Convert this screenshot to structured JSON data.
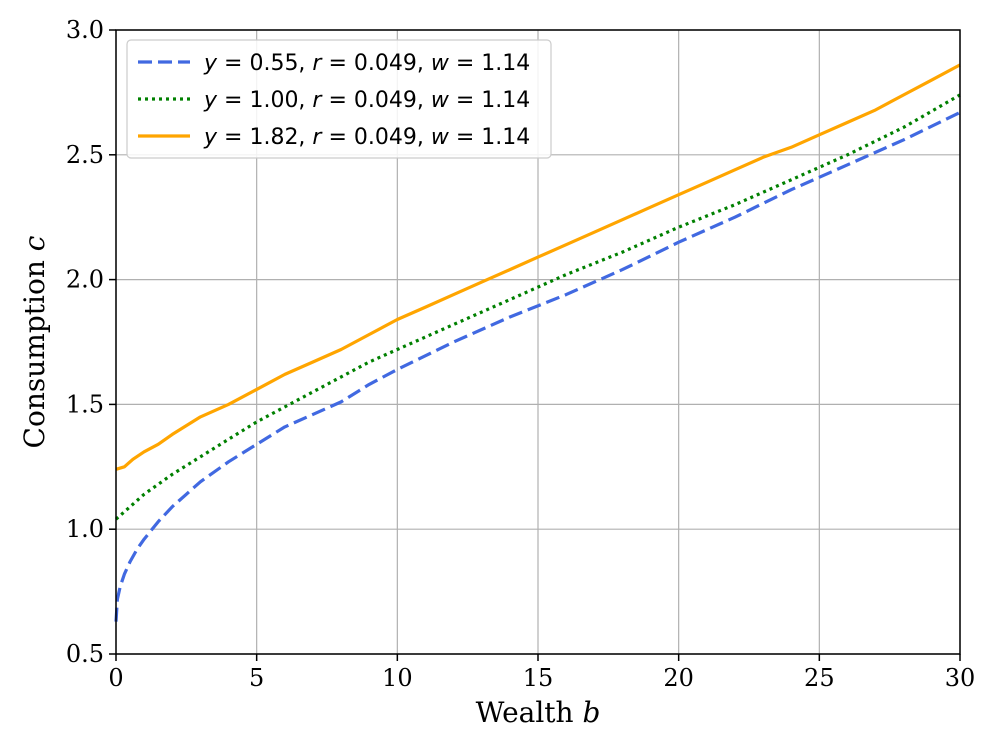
{
  "chart_data": {
    "type": "line",
    "xlabel": "Wealth",
    "xlabel_var": "b",
    "ylabel": "Consumption",
    "ylabel_var": "c",
    "xlim": [
      0,
      30
    ],
    "ylim": [
      0.5,
      3.0
    ],
    "xticks": [
      0,
      5,
      10,
      15,
      20,
      25,
      30
    ],
    "yticks": [
      0.5,
      1.0,
      1.5,
      2.0,
      2.5,
      3.0
    ],
    "xtick_labels": [
      "0",
      "5",
      "10",
      "15",
      "20",
      "25",
      "30"
    ],
    "ytick_labels": [
      "0.5",
      "1.0",
      "1.5",
      "2.0",
      "2.5",
      "3.0"
    ],
    "grid": true,
    "legend_position": "top-left",
    "series": [
      {
        "name": "y = 0.55, r = 0.049, w = 1.14",
        "legend": {
          "y": "0.55",
          "r": "0.049",
          "w": "1.14"
        },
        "color": "#4169e1",
        "style": "dashed",
        "x": [
          0,
          0.05,
          0.15,
          0.3,
          0.5,
          0.75,
          1.0,
          1.5,
          2.0,
          2.5,
          3.0,
          4.0,
          5.0,
          6.0,
          7.0,
          8.0,
          9.0,
          10.0,
          12.0,
          14.0,
          16.0,
          18.0,
          20.0,
          22.0,
          24.0,
          26.0,
          28.0,
          30.0
        ],
        "y": [
          0.63,
          0.72,
          0.77,
          0.82,
          0.87,
          0.92,
          0.96,
          1.03,
          1.09,
          1.14,
          1.19,
          1.27,
          1.34,
          1.41,
          1.46,
          1.51,
          1.58,
          1.64,
          1.75,
          1.85,
          1.94,
          2.04,
          2.15,
          2.25,
          2.36,
          2.46,
          2.56,
          2.67
        ]
      },
      {
        "name": "y = 1.00, r = 0.049, w = 1.14",
        "legend": {
          "y": "1.00",
          "r": "0.049",
          "w": "1.14"
        },
        "color": "#008000",
        "style": "dotted",
        "x": [
          0,
          0.5,
          1.0,
          2.0,
          3.0,
          4.0,
          5.0,
          6.0,
          7.0,
          8.0,
          9.0,
          10.0,
          12.0,
          14.0,
          16.0,
          18.0,
          20.0,
          22.0,
          24.0,
          26.0,
          28.0,
          30.0
        ],
        "y": [
          1.04,
          1.09,
          1.14,
          1.22,
          1.29,
          1.36,
          1.43,
          1.49,
          1.55,
          1.61,
          1.67,
          1.72,
          1.82,
          1.92,
          2.02,
          2.11,
          2.21,
          2.3,
          2.4,
          2.5,
          2.61,
          2.74
        ]
      },
      {
        "name": "y = 1.82, r = 0.049, w = 1.14",
        "legend": {
          "y": "1.82",
          "r": "0.049",
          "w": "1.14"
        },
        "color": "#ffa500",
        "style": "solid",
        "x": [
          0,
          0.3,
          0.6,
          1.0,
          1.5,
          2.0,
          3.0,
          4.0,
          5.0,
          6.0,
          7.0,
          8.0,
          9.0,
          10.0,
          11.0,
          12.0,
          13.0,
          14.0,
          15.0,
          16.0,
          17.0,
          18.0,
          19.0,
          20.0,
          21.0,
          22.0,
          23.0,
          24.0,
          25.0,
          26.0,
          27.0,
          28.0,
          29.0,
          30.0
        ],
        "y": [
          1.24,
          1.25,
          1.28,
          1.31,
          1.34,
          1.38,
          1.45,
          1.5,
          1.56,
          1.62,
          1.67,
          1.72,
          1.78,
          1.84,
          1.89,
          1.94,
          1.99,
          2.04,
          2.09,
          2.14,
          2.19,
          2.24,
          2.29,
          2.34,
          2.39,
          2.44,
          2.49,
          2.53,
          2.58,
          2.63,
          2.68,
          2.74,
          2.8,
          2.86
        ]
      }
    ]
  }
}
